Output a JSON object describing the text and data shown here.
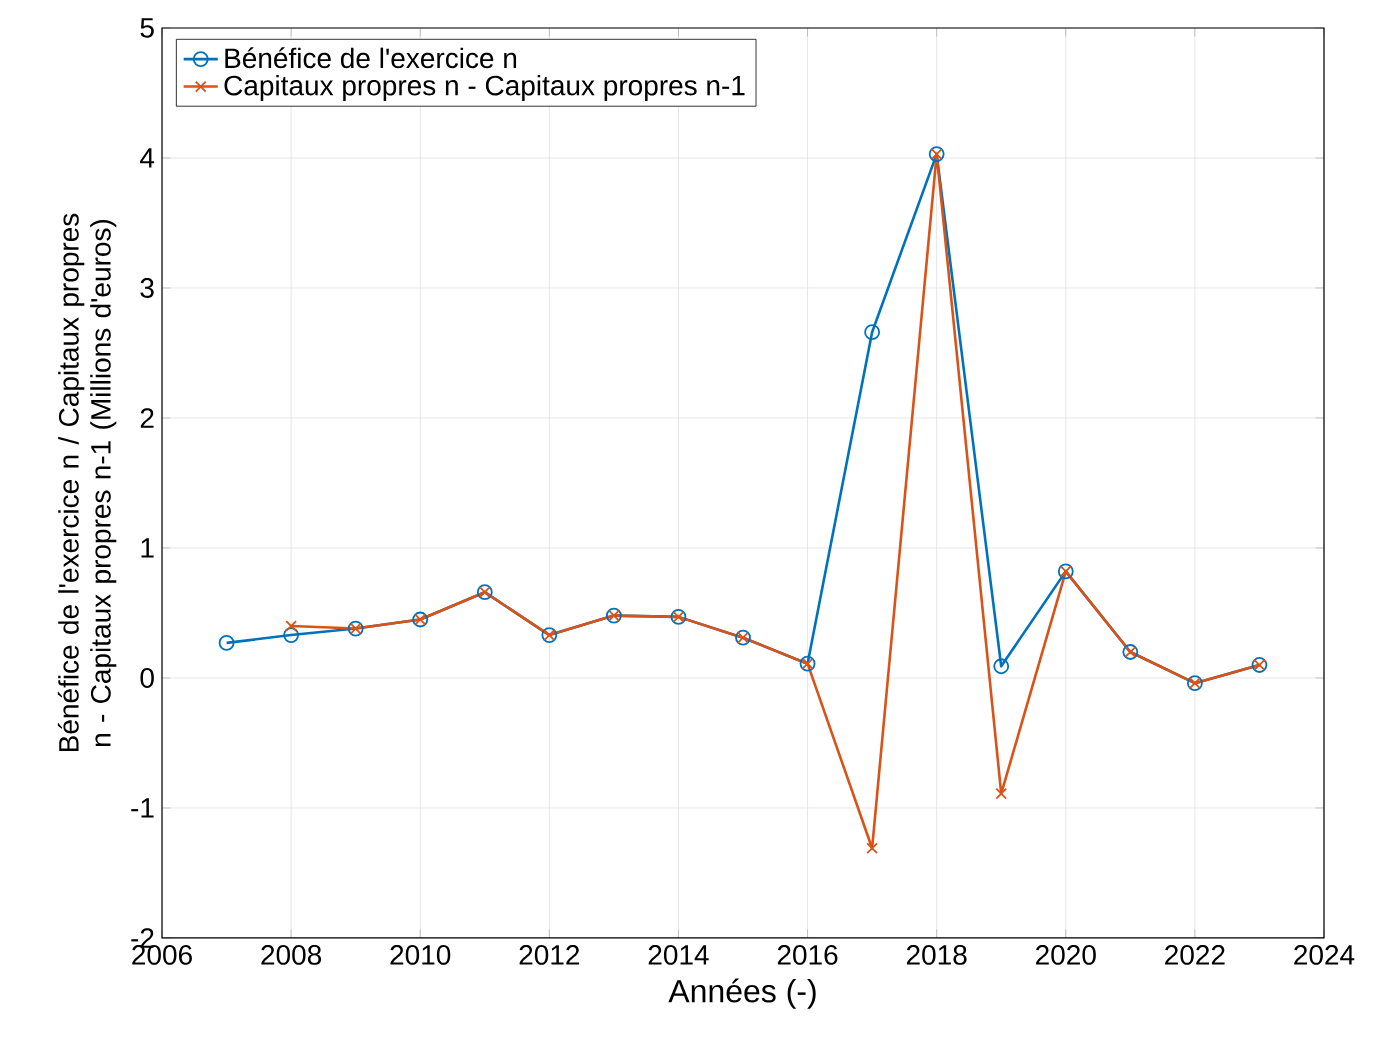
{
  "chart_data": {
    "type": "line",
    "xlabel": "Années (-)",
    "ylabel": "Bénéfice de l'exercice n / Capitaux propres n - Capitaux propres n-1 (Millions d'euros)",
    "xlim": [
      2006,
      2024
    ],
    "xticks": [
      2006,
      2008,
      2010,
      2012,
      2014,
      2016,
      2018,
      2020,
      2022,
      2024
    ],
    "ylim": [
      -2,
      5
    ],
    "yticks": [
      -2,
      -1,
      0,
      1,
      2,
      3,
      4,
      5
    ],
    "grid": true,
    "legend": "top left",
    "line_style": "solid",
    "series": [
      {
        "name": "Bénéfice de l'exercice n",
        "color": "#0072bd",
        "marker": "circle",
        "x": [
          2007,
          2008,
          2009,
          2010,
          2011,
          2012,
          2013,
          2014,
          2015,
          2016,
          2017,
          2018,
          2019,
          2020,
          2021,
          2022,
          2023
        ],
        "values": [
          0.27,
          0.33,
          0.38,
          0.45,
          0.66,
          0.33,
          0.48,
          0.47,
          0.31,
          0.11,
          2.66,
          4.03,
          0.09,
          0.82,
          0.2,
          -0.04,
          0.1
        ]
      },
      {
        "name": "Capitaux propres n - Capitaux propres n-1",
        "color": "#d95319",
        "marker": "cross",
        "x": [
          2008,
          2009,
          2010,
          2011,
          2012,
          2013,
          2014,
          2015,
          2016,
          2017,
          2018,
          2019,
          2020,
          2021,
          2022,
          2023
        ],
        "values": [
          0.4,
          0.38,
          0.45,
          0.66,
          0.33,
          0.48,
          0.47,
          0.31,
          0.11,
          -1.31,
          4.03,
          -0.89,
          0.82,
          0.2,
          -0.04,
          0.1
        ]
      }
    ]
  }
}
